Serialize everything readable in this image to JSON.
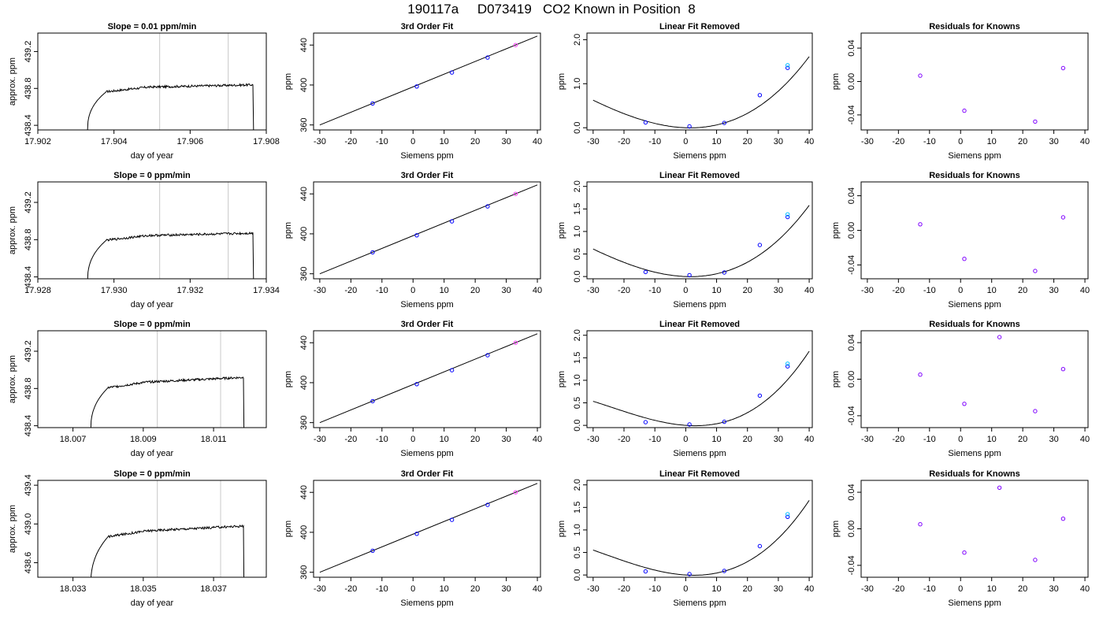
{
  "page": {
    "title": "190117a     D073419   CO2 Known in Position  8"
  },
  "chart_data": [
    {
      "type": "line",
      "title": "Slope =  0.01  ppm/min",
      "xlabel": "day of year",
      "ylabel": "approx. ppm",
      "xlim": [
        17.902,
        17.908
      ],
      "ylim": [
        438.35,
        439.4
      ],
      "xticks": [
        "17.902",
        "17.904",
        "17.906",
        "17.908"
      ],
      "xtick_values": [
        17.902,
        17.904,
        17.906,
        17.908
      ],
      "yticks": [
        "438.4",
        "438.8",
        "439.2"
      ],
      "ytick_values": [
        438.4,
        438.8,
        439.2
      ],
      "vlines": [
        17.9052,
        17.907
      ],
      "trace": {
        "start": 17.9033,
        "end": 17.9077,
        "rise_end": 17.9038,
        "plateau_start": 438.8,
        "plateau_end": 438.84,
        "floor": 438.3,
        "noise": 0.012
      },
      "color": "#000000"
    },
    {
      "type": "scatter",
      "title": "3rd Order Fit",
      "xlabel": "Siemens ppm",
      "ylabel": "ppm",
      "xlim": [
        -32,
        41
      ],
      "ylim": [
        355,
        452
      ],
      "xticks": [
        "-30",
        "-20",
        "-10",
        "0",
        "10",
        "20",
        "30",
        "40"
      ],
      "xtick_values": [
        -30,
        -20,
        -10,
        0,
        10,
        20,
        30,
        40
      ],
      "yticks": [
        "360",
        "400",
        "440"
      ],
      "ytick_values": [
        360,
        400,
        440
      ],
      "points": [
        [
          -13,
          381.5
        ],
        [
          1.2,
          398.5
        ],
        [
          12.5,
          412.5
        ],
        [
          24,
          427.5
        ],
        [
          33,
          440
        ]
      ],
      "curve": {
        "type": "linear",
        "x0": -30,
        "y0": 360,
        "x1": 40,
        "y1": 449
      },
      "color": "#0000ff"
    },
    {
      "type": "scatter",
      "title": "Linear Fit Removed",
      "xlabel": "Siemens ppm",
      "ylabel": "ppm",
      "xlim": [
        -32,
        41
      ],
      "ylim": [
        -0.05,
        2.15
      ],
      "xticks": [
        "-30",
        "-20",
        "-10",
        "0",
        "10",
        "20",
        "30",
        "40"
      ],
      "xtick_values": [
        -30,
        -20,
        -10,
        0,
        10,
        20,
        30,
        40
      ],
      "yticks": [
        "0.0",
        "1.0",
        "2.0"
      ],
      "ytick_values": [
        0,
        1,
        2
      ],
      "points": [
        [
          -13,
          0.12
        ],
        [
          1.2,
          0.03
        ],
        [
          12.5,
          0.11
        ],
        [
          24,
          0.74
        ],
        [
          33,
          1.36
        ],
        [
          33,
          1.42
        ]
      ],
      "curve": {
        "type": "cubic",
        "coef": [
          0,
          -0.0024,
          0.00081,
          6.5e-06
        ]
      },
      "color": "#0000ff"
    },
    {
      "type": "scatter",
      "title": "Residuals for Knowns",
      "xlabel": "Siemens ppm",
      "ylabel": "ppm",
      "xlim": [
        -32,
        41
      ],
      "ylim": [
        -0.058,
        0.058
      ],
      "xticks": [
        "-30",
        "-20",
        "-10",
        "0",
        "10",
        "20",
        "30",
        "40"
      ],
      "xtick_values": [
        -30,
        -20,
        -10,
        0,
        10,
        20,
        30,
        40
      ],
      "yticks": [
        "-0.04",
        "0.00",
        "0.04"
      ],
      "ytick_values": [
        -0.04,
        0,
        0.04
      ],
      "points": [
        [
          -13,
          0.007
        ],
        [
          1.2,
          -0.035
        ],
        [
          24,
          -0.048
        ],
        [
          33,
          0.016
        ]
      ],
      "color": "#7f00ff"
    },
    {
      "type": "line",
      "title": "Slope =  0  ppm/min",
      "xlabel": "day of year",
      "ylabel": "approx. ppm",
      "xlim": [
        17.928,
        17.934
      ],
      "ylim": [
        438.38,
        439.42
      ],
      "xticks": [
        "17.928",
        "17.930",
        "17.932",
        "17.934"
      ],
      "xtick_values": [
        17.928,
        17.93,
        17.932,
        17.934
      ],
      "yticks": [
        "438.4",
        "438.8",
        "439.2"
      ],
      "ytick_values": [
        438.4,
        438.8,
        439.2
      ],
      "vlines": [
        17.9312,
        17.933
      ],
      "trace": {
        "start": 17.9293,
        "end": 17.9337,
        "rise_end": 17.9298,
        "plateau_start": 438.83,
        "plateau_end": 438.87,
        "floor": 438.3,
        "noise": 0.012
      },
      "color": "#000000"
    },
    {
      "type": "scatter",
      "title": "3rd Order Fit",
      "xlabel": "Siemens ppm",
      "ylabel": "ppm",
      "xlim": [
        -32,
        41
      ],
      "ylim": [
        355,
        452
      ],
      "xticks": [
        "-30",
        "-20",
        "-10",
        "0",
        "10",
        "20",
        "30",
        "40"
      ],
      "xtick_values": [
        -30,
        -20,
        -10,
        0,
        10,
        20,
        30,
        40
      ],
      "yticks": [
        "360",
        "400",
        "440"
      ],
      "ytick_values": [
        360,
        400,
        440
      ],
      "points": [
        [
          -13,
          381.5
        ],
        [
          1.2,
          398.5
        ],
        [
          12.5,
          412.5
        ],
        [
          24,
          427.5
        ],
        [
          33,
          440
        ]
      ],
      "curve": {
        "type": "linear",
        "x0": -30,
        "y0": 360,
        "x1": 40,
        "y1": 449
      },
      "color": "#0000ff"
    },
    {
      "type": "scatter",
      "title": "Linear Fit Removed",
      "xlabel": "Siemens ppm",
      "ylabel": "ppm",
      "xlim": [
        -32,
        41
      ],
      "ylim": [
        -0.05,
        2.1
      ],
      "xticks": [
        "-30",
        "-20",
        "-10",
        "0",
        "10",
        "20",
        "30",
        "40"
      ],
      "xtick_values": [
        -30,
        -20,
        -10,
        0,
        10,
        20,
        30,
        40
      ],
      "yticks": [
        "0.0",
        "0.5",
        "1.0",
        "1.5",
        "2.0"
      ],
      "ytick_values": [
        0,
        0.5,
        1,
        1.5,
        2
      ],
      "points": [
        [
          -13,
          0.1
        ],
        [
          1.2,
          0.03
        ],
        [
          12.5,
          0.09
        ],
        [
          24,
          0.7
        ],
        [
          33,
          1.32
        ],
        [
          33,
          1.38
        ]
      ],
      "curve": {
        "type": "cubic",
        "coef": [
          0,
          -0.0025,
          0.00079,
          6.5e-06
        ]
      },
      "color": "#0000ff"
    },
    {
      "type": "scatter",
      "title": "Residuals for Knowns",
      "xlabel": "Siemens ppm",
      "ylabel": "ppm",
      "xlim": [
        -32,
        41
      ],
      "ylim": [
        -0.056,
        0.056
      ],
      "xticks": [
        "-30",
        "-20",
        "-10",
        "0",
        "10",
        "20",
        "30",
        "40"
      ],
      "xtick_values": [
        -30,
        -20,
        -10,
        0,
        10,
        20,
        30,
        40
      ],
      "yticks": [
        "-0.04",
        "0.00",
        "0.04"
      ],
      "ytick_values": [
        -0.04,
        0,
        0.04
      ],
      "points": [
        [
          -13,
          0.007
        ],
        [
          1.2,
          -0.033
        ],
        [
          24,
          -0.047
        ],
        [
          33,
          0.015
        ]
      ],
      "color": "#7f00ff"
    },
    {
      "type": "line",
      "title": "Slope =  0  ppm/min",
      "xlabel": "day of year",
      "ylabel": "approx. ppm",
      "xlim": [
        18.006,
        18.0125
      ],
      "ylim": [
        438.38,
        439.42
      ],
      "xticks": [
        "18.007",
        "18.009",
        "18.011"
      ],
      "xtick_values": [
        18.007,
        18.009,
        18.011
      ],
      "yticks": [
        "438.4",
        "438.8",
        "439.2"
      ],
      "ytick_values": [
        438.4,
        438.8,
        439.2
      ],
      "vlines": [
        18.0094,
        18.0112
      ],
      "trace": {
        "start": 18.0075,
        "end": 18.0119,
        "rise_end": 18.008,
        "plateau_start": 438.84,
        "plateau_end": 438.92,
        "floor": 438.3,
        "noise": 0.012
      },
      "color": "#000000"
    },
    {
      "type": "scatter",
      "title": "3rd Order Fit",
      "xlabel": "Siemens ppm",
      "ylabel": "ppm",
      "xlim": [
        -32,
        41
      ],
      "ylim": [
        355,
        452
      ],
      "xticks": [
        "-30",
        "-20",
        "-10",
        "0",
        "10",
        "20",
        "30",
        "40"
      ],
      "xtick_values": [
        -30,
        -20,
        -10,
        0,
        10,
        20,
        30,
        40
      ],
      "yticks": [
        "360",
        "400",
        "440"
      ],
      "ytick_values": [
        360,
        400,
        440
      ],
      "points": [
        [
          -13,
          381.5
        ],
        [
          1.2,
          398.5
        ],
        [
          12.5,
          412.5
        ],
        [
          24,
          427.5
        ],
        [
          33,
          440
        ]
      ],
      "curve": {
        "type": "linear",
        "x0": -30,
        "y0": 360,
        "x1": 40,
        "y1": 449
      },
      "color": "#0000ff"
    },
    {
      "type": "scatter",
      "title": "Linear Fit Removed",
      "xlabel": "Siemens ppm",
      "ylabel": "ppm",
      "xlim": [
        -32,
        41
      ],
      "ylim": [
        -0.05,
        2.1
      ],
      "xticks": [
        "-30",
        "-20",
        "-10",
        "0",
        "10",
        "20",
        "30",
        "40"
      ],
      "xtick_values": [
        -30,
        -20,
        -10,
        0,
        10,
        20,
        30,
        40
      ],
      "yticks": [
        "0.0",
        "0.5",
        "1.0",
        "1.5",
        "2.0"
      ],
      "ytick_values": [
        0,
        0.5,
        1,
        1.5,
        2
      ],
      "points": [
        [
          -13,
          0.07
        ],
        [
          1.2,
          0.02
        ],
        [
          12.5,
          0.08
        ],
        [
          24,
          0.66
        ],
        [
          33,
          1.31
        ],
        [
          33,
          1.37
        ]
      ],
      "curve": {
        "type": "cubic",
        "coef": [
          0,
          -0.0048,
          0.00074,
          1.02e-05
        ]
      },
      "color": "#0000ff"
    },
    {
      "type": "scatter",
      "title": "Residuals for Knowns",
      "xlabel": "Siemens ppm",
      "ylabel": "ppm",
      "xlim": [
        -32,
        41
      ],
      "ylim": [
        -0.053,
        0.053
      ],
      "xticks": [
        "-30",
        "-20",
        "-10",
        "0",
        "10",
        "20",
        "30",
        "40"
      ],
      "xtick_values": [
        -30,
        -20,
        -10,
        0,
        10,
        20,
        30,
        40
      ],
      "yticks": [
        "-0.04",
        "0.00",
        "0.04"
      ],
      "ytick_values": [
        -0.04,
        0,
        0.04
      ],
      "points": [
        [
          -13,
          0.005
        ],
        [
          1.2,
          -0.027
        ],
        [
          12.5,
          0.046
        ],
        [
          24,
          -0.035
        ],
        [
          33,
          0.011
        ]
      ],
      "color": "#7f00ff"
    },
    {
      "type": "line",
      "title": "Slope =  0  ppm/min",
      "xlabel": "day of year",
      "ylabel": "approx. ppm",
      "xlim": [
        18.032,
        18.0385
      ],
      "ylim": [
        438.45,
        439.45
      ],
      "xticks": [
        "18.033",
        "18.035",
        "18.037"
      ],
      "xtick_values": [
        18.033,
        18.035,
        18.037
      ],
      "yticks": [
        "438.6",
        "439.0",
        "439.4"
      ],
      "ytick_values": [
        438.6,
        439.0,
        439.4
      ],
      "vlines": [
        18.0354,
        18.0372
      ],
      "trace": {
        "start": 18.0335,
        "end": 18.0379,
        "rise_end": 18.034,
        "plateau_start": 438.9,
        "plateau_end": 438.98,
        "floor": 438.3,
        "noise": 0.012
      },
      "color": "#000000"
    },
    {
      "type": "scatter",
      "title": "3rd Order Fit",
      "xlabel": "Siemens ppm",
      "ylabel": "ppm",
      "xlim": [
        -32,
        41
      ],
      "ylim": [
        355,
        452
      ],
      "xticks": [
        "-30",
        "-20",
        "-10",
        "0",
        "10",
        "20",
        "30",
        "40"
      ],
      "xtick_values": [
        -30,
        -20,
        -10,
        0,
        10,
        20,
        30,
        40
      ],
      "yticks": [
        "360",
        "400",
        "440"
      ],
      "ytick_values": [
        360,
        400,
        440
      ],
      "points": [
        [
          -13,
          381.5
        ],
        [
          1.2,
          398.5
        ],
        [
          12.5,
          412.5
        ],
        [
          24,
          427.5
        ],
        [
          33,
          440
        ]
      ],
      "curve": {
        "type": "linear",
        "x0": -30,
        "y0": 360,
        "x1": 40,
        "y1": 449
      },
      "color": "#0000ff"
    },
    {
      "type": "scatter",
      "title": "Linear Fit Removed",
      "xlabel": "Siemens ppm",
      "ylabel": "ppm",
      "xlim": [
        -32,
        41
      ],
      "ylim": [
        -0.05,
        2.1
      ],
      "xticks": [
        "-30",
        "-20",
        "-10",
        "0",
        "10",
        "20",
        "30",
        "40"
      ],
      "xtick_values": [
        -30,
        -20,
        -10,
        0,
        10,
        20,
        30,
        40
      ],
      "yticks": [
        "0.0",
        "0.5",
        "1.0",
        "1.5",
        "2.0"
      ],
      "ytick_values": [
        0,
        0.5,
        1,
        1.5,
        2
      ],
      "points": [
        [
          -13,
          0.08
        ],
        [
          1.2,
          0.02
        ],
        [
          12.5,
          0.09
        ],
        [
          24,
          0.64
        ],
        [
          33,
          1.29
        ],
        [
          33,
          1.35
        ]
      ],
      "curve": {
        "type": "cubic",
        "coef": [
          0,
          -0.0042,
          0.00076,
          9.5e-06
        ]
      },
      "color": "#0000ff"
    },
    {
      "type": "scatter",
      "title": "Residuals for Knowns",
      "xlabel": "Siemens ppm",
      "ylabel": "ppm",
      "xlim": [
        -32,
        41
      ],
      "ylim": [
        -0.053,
        0.053
      ],
      "xticks": [
        "-30",
        "-20",
        "-10",
        "0",
        "10",
        "20",
        "30",
        "40"
      ],
      "xtick_values": [
        -30,
        -20,
        -10,
        0,
        10,
        20,
        30,
        40
      ],
      "yticks": [
        "-0.04",
        "0.00",
        "0.04"
      ],
      "ytick_values": [
        -0.04,
        0,
        0.04
      ],
      "points": [
        [
          -13,
          0.005
        ],
        [
          1.2,
          -0.026
        ],
        [
          12.5,
          0.045
        ],
        [
          24,
          -0.034
        ],
        [
          33,
          0.011
        ]
      ],
      "color": "#7f00ff"
    }
  ]
}
